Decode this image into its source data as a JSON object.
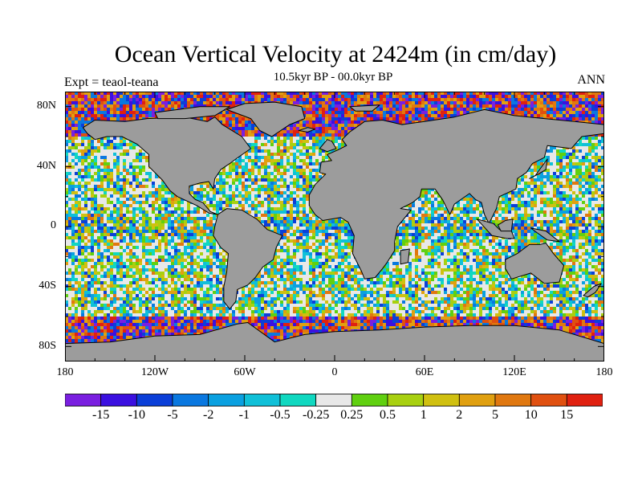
{
  "title": "Ocean Vertical Velocity at 2424m (in cm/day)",
  "subtitle": "10.5kyr BP - 00.0kyr BP",
  "left_label": "Expt = teaol-teana",
  "right_label": "ANN",
  "y_ticks": [
    "80N",
    "40N",
    "0",
    "40S",
    "80S"
  ],
  "x_ticks": [
    "180",
    "120W",
    "60W",
    "0",
    "60E",
    "120E",
    "180"
  ],
  "colorbar": {
    "labels": [
      "-15",
      "-10",
      "-5",
      "-2",
      "-1",
      "-0.5",
      "-0.25",
      "0.25",
      "0.5",
      "1",
      "2",
      "5",
      "10",
      "15"
    ],
    "colors": [
      "#7a1fe0",
      "#3b10e0",
      "#0b3fd8",
      "#0a78e0",
      "#0aa0e0",
      "#10c0d8",
      "#10d8c0",
      "#e8e8e8",
      "#60d010",
      "#a8d010",
      "#d0c010",
      "#e0a010",
      "#e07810",
      "#e05010",
      "#e02010"
    ]
  },
  "map": {
    "land_color": "#9c9c9c",
    "coast_color": "#000000"
  }
}
